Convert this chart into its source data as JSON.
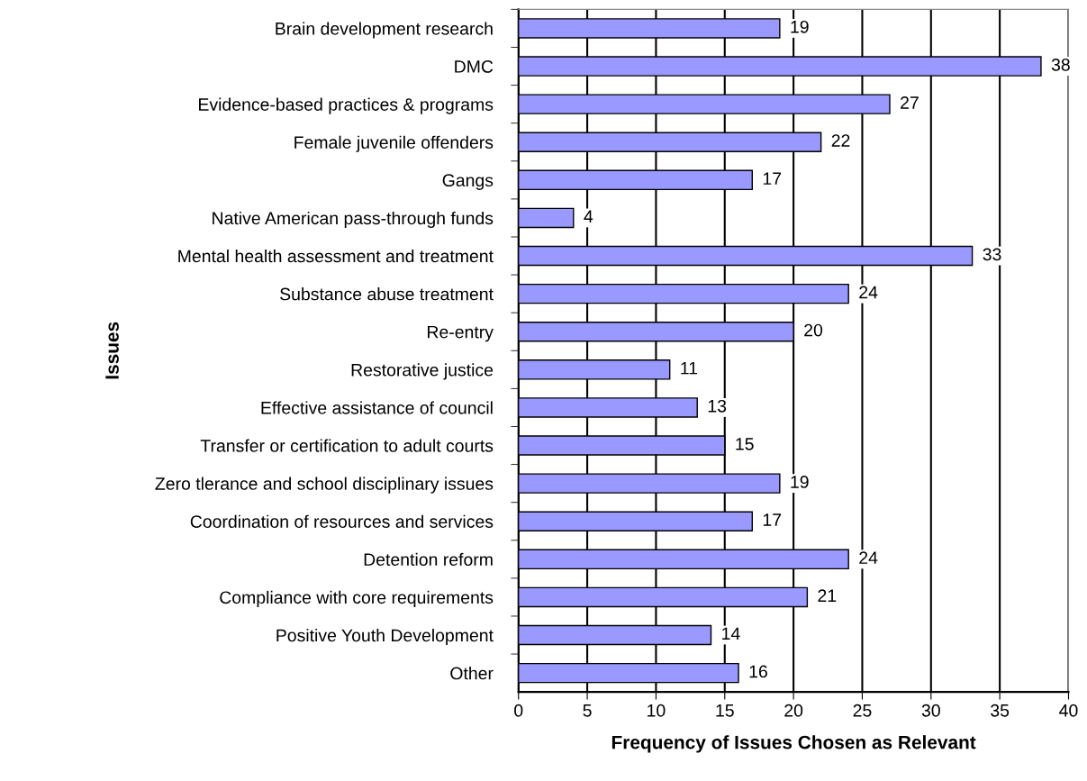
{
  "chart_data": {
    "type": "bar",
    "orientation": "horizontal",
    "categories": [
      "Brain development research",
      "DMC",
      "Evidence-based practices & programs",
      "Female juvenile offenders",
      "Gangs",
      "Native American pass-through funds",
      "Mental health assessment and treatment",
      "Substance abuse treatment",
      "Re-entry",
      "Restorative justice",
      "Effective assistance of council",
      "Transfer or certification to adult courts",
      "Zero tlerance and school disciplinary issues",
      "Coordination of resources and services",
      "Detention reform",
      "Compliance with core requirements",
      "Positive Youth Development",
      "Other"
    ],
    "values": [
      19,
      38,
      27,
      22,
      17,
      4,
      33,
      24,
      20,
      11,
      13,
      15,
      19,
      17,
      24,
      21,
      14,
      16
    ],
    "color": "#9999ff",
    "xlim": [
      0,
      40
    ],
    "xticks": [
      0,
      5,
      10,
      15,
      20,
      25,
      30,
      35,
      40
    ],
    "xlabel": "Frequency of Issues Chosen as Relevant",
    "ylabel": "Issues",
    "grid": "x",
    "data_labels": true
  }
}
